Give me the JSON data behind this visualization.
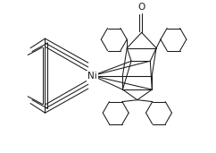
{
  "bg_color": "#ffffff",
  "line_color": "#1a1a1a",
  "line_width": 0.75,
  "fig_width": 2.42,
  "fig_height": 1.71,
  "dpi": 100,
  "ni_label": "Ni",
  "o_label": "O"
}
